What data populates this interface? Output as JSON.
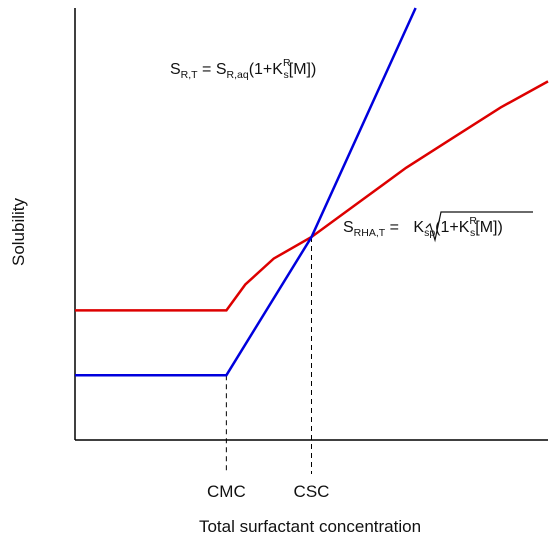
{
  "chart_data": {
    "type": "line",
    "title": "",
    "xlabel": "Total surfactant concentration",
    "ylabel": "Solubility",
    "x_tick_labels": [
      "CMC",
      "CSC"
    ],
    "grid": false,
    "series": [
      {
        "color": "#0000dd",
        "equation": {
          "lhs_main": "S",
          "lhs_sub": "R,T",
          "rhs_main": "S",
          "rhs_sub": "R,aq",
          "open": "(1+K",
          "k_sup": "R",
          "k_sub": "s",
          "close": "[M])"
        },
        "x": [
          0,
          0.32,
          0.5,
          0.72
        ],
        "y": [
          0.15,
          0.15,
          0.47,
          1.0
        ]
      },
      {
        "color": "#dd0000",
        "equation": {
          "lhs_main": "S",
          "lhs_sub": "RHA,T",
          "sqrt_main": "K",
          "sqrt_sub": "sp",
          "open": "(1+K",
          "k_sup": "R",
          "k_sub": "s",
          "close": "[M])"
        },
        "x": [
          0,
          0.32,
          0.36,
          0.42,
          0.5,
          0.6,
          0.7,
          0.8,
          0.9,
          1.0
        ],
        "y": [
          0.3,
          0.3,
          0.36,
          0.42,
          0.47,
          0.55,
          0.63,
          0.7,
          0.77,
          0.83
        ]
      }
    ]
  }
}
